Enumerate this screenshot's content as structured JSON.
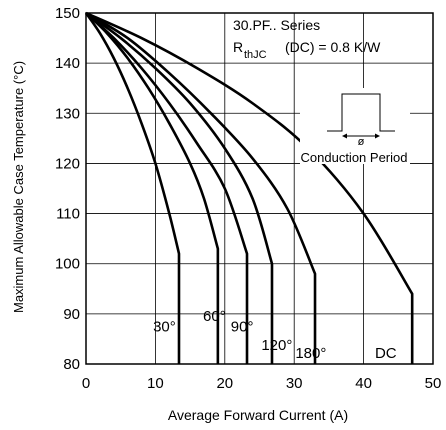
{
  "chart_data": {
    "type": "line",
    "xlabel": "Average Forward Current (A)",
    "ylabel": "Maximum Allowable Case Temperature (°C)",
    "xlim": [
      0,
      50
    ],
    "ylim": [
      80,
      150
    ],
    "x_ticks": [
      0,
      10,
      20,
      30,
      40,
      50
    ],
    "y_ticks": [
      80,
      90,
      100,
      110,
      120,
      130,
      140,
      150
    ],
    "grid": true,
    "annotations": {
      "series_name": "30.PF.. Series",
      "rth_main": "R",
      "rth_sub": "thJC",
      "rth_rest": "(DC) = 0.8 K/W",
      "inset_symbol": "ø",
      "inset_label": "Conduction Period"
    },
    "series": [
      {
        "label": "30°",
        "x": [
          0,
          2,
          4,
          6,
          8,
          10,
          12,
          13.4,
          13.4
        ],
        "y": [
          150,
          146,
          141,
          135,
          128,
          120,
          110,
          102,
          80
        ]
      },
      {
        "label": "60°",
        "x": [
          0,
          3,
          6,
          9,
          12,
          15,
          17,
          19,
          19
        ],
        "y": [
          150,
          146,
          141,
          135,
          128,
          120,
          113,
          103,
          80
        ]
      },
      {
        "label": "90°",
        "x": [
          0,
          4,
          8,
          12,
          16,
          20,
          23.2,
          23.2
        ],
        "y": [
          150,
          145,
          139,
          132,
          124,
          115,
          102,
          80
        ]
      },
      {
        "label": "120°",
        "x": [
          0,
          5,
          10,
          15,
          20,
          24,
          26.8,
          26.8
        ],
        "y": [
          150,
          145,
          139,
          132,
          123,
          113,
          100,
          80
        ]
      },
      {
        "label": "180°",
        "x": [
          0,
          6,
          12,
          18,
          24,
          29,
          33,
          33
        ],
        "y": [
          150,
          145,
          138,
          130,
          121,
          111,
          98,
          80
        ]
      },
      {
        "label": "DC",
        "x": [
          0,
          8,
          16,
          24,
          32,
          40,
          47,
          47
        ],
        "y": [
          150,
          145,
          139,
          132,
          123,
          110,
          94,
          80
        ]
      }
    ],
    "series_labels": [
      {
        "text": "30°",
        "x": 11.3,
        "y": 86.5
      },
      {
        "text": "60°",
        "x": 18.5,
        "y": 88.6
      },
      {
        "text": "90°",
        "x": 22.5,
        "y": 86.5
      },
      {
        "text": "120°",
        "x": 27.5,
        "y": 82.8
      },
      {
        "text": "180°",
        "x": 32.4,
        "y": 81.2
      },
      {
        "text": "DC",
        "x": 43.2,
        "y": 81.2
      }
    ]
  }
}
